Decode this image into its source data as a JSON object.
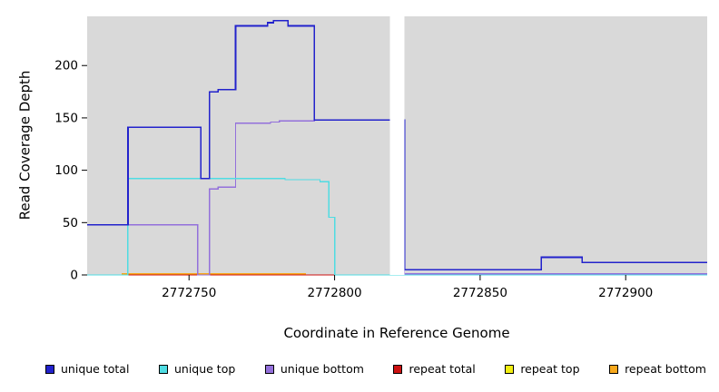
{
  "chart_data": {
    "type": "line",
    "title": "",
    "xlabel": "Coordinate in Reference Genome",
    "ylabel": "Read Coverage Depth",
    "xlim": [
      2772715,
      2772928
    ],
    "ylim": [
      0,
      247
    ],
    "xticks": [
      2772750,
      2772800,
      2772850,
      2772900
    ],
    "yticks": [
      0,
      50,
      100,
      150,
      200
    ],
    "plot_bg": "#d9d9d9",
    "gap_region": [
      2772819,
      2772824
    ],
    "gap_color": "#ffffff",
    "series": [
      {
        "name": "unique total",
        "color": "#2222cc",
        "width": 1.7,
        "steps": [
          [
            2772715,
            48
          ],
          [
            2772729,
            141
          ],
          [
            2772754,
            92
          ],
          [
            2772757,
            175
          ],
          [
            2772760,
            177
          ],
          [
            2772766,
            238
          ],
          [
            2772777,
            241
          ],
          [
            2772779,
            243
          ],
          [
            2772784,
            238
          ],
          [
            2772793,
            148
          ],
          [
            2772824,
            5
          ],
          [
            2772871,
            17
          ],
          [
            2772885,
            12
          ],
          [
            2772928,
            12
          ]
        ]
      },
      {
        "name": "unique top",
        "color": "#4fdce2",
        "width": 1.4,
        "steps": [
          [
            2772715,
            0
          ],
          [
            2772729,
            92
          ],
          [
            2772783,
            91
          ],
          [
            2772795,
            89
          ],
          [
            2772798,
            55
          ],
          [
            2772800,
            0
          ],
          [
            2772928,
            0
          ]
        ]
      },
      {
        "name": "unique bottom",
        "color": "#9370db",
        "width": 1.4,
        "steps": [
          [
            2772715,
            48
          ],
          [
            2772753,
            0
          ],
          [
            2772757,
            82
          ],
          [
            2772760,
            84
          ],
          [
            2772766,
            145
          ],
          [
            2772778,
            146
          ],
          [
            2772781,
            147
          ],
          [
            2772793,
            148
          ],
          [
            2772824,
            1
          ],
          [
            2772928,
            1
          ]
        ]
      },
      {
        "name": "repeat total",
        "color": "#cc1111",
        "width": 1.4,
        "steps": [
          [
            2772715,
            0
          ],
          [
            2772928,
            0
          ]
        ]
      },
      {
        "name": "repeat top",
        "color": "#f2ee11",
        "width": 1.4,
        "steps": [
          [
            2772715,
            0
          ],
          [
            2772928,
            0
          ]
        ]
      },
      {
        "name": "repeat bottom",
        "color": "#f7a81c",
        "width": 1.4,
        "steps": [
          [
            2772715,
            0
          ],
          [
            2772727,
            1
          ],
          [
            2772790,
            0
          ],
          [
            2772928,
            0
          ]
        ]
      }
    ]
  }
}
